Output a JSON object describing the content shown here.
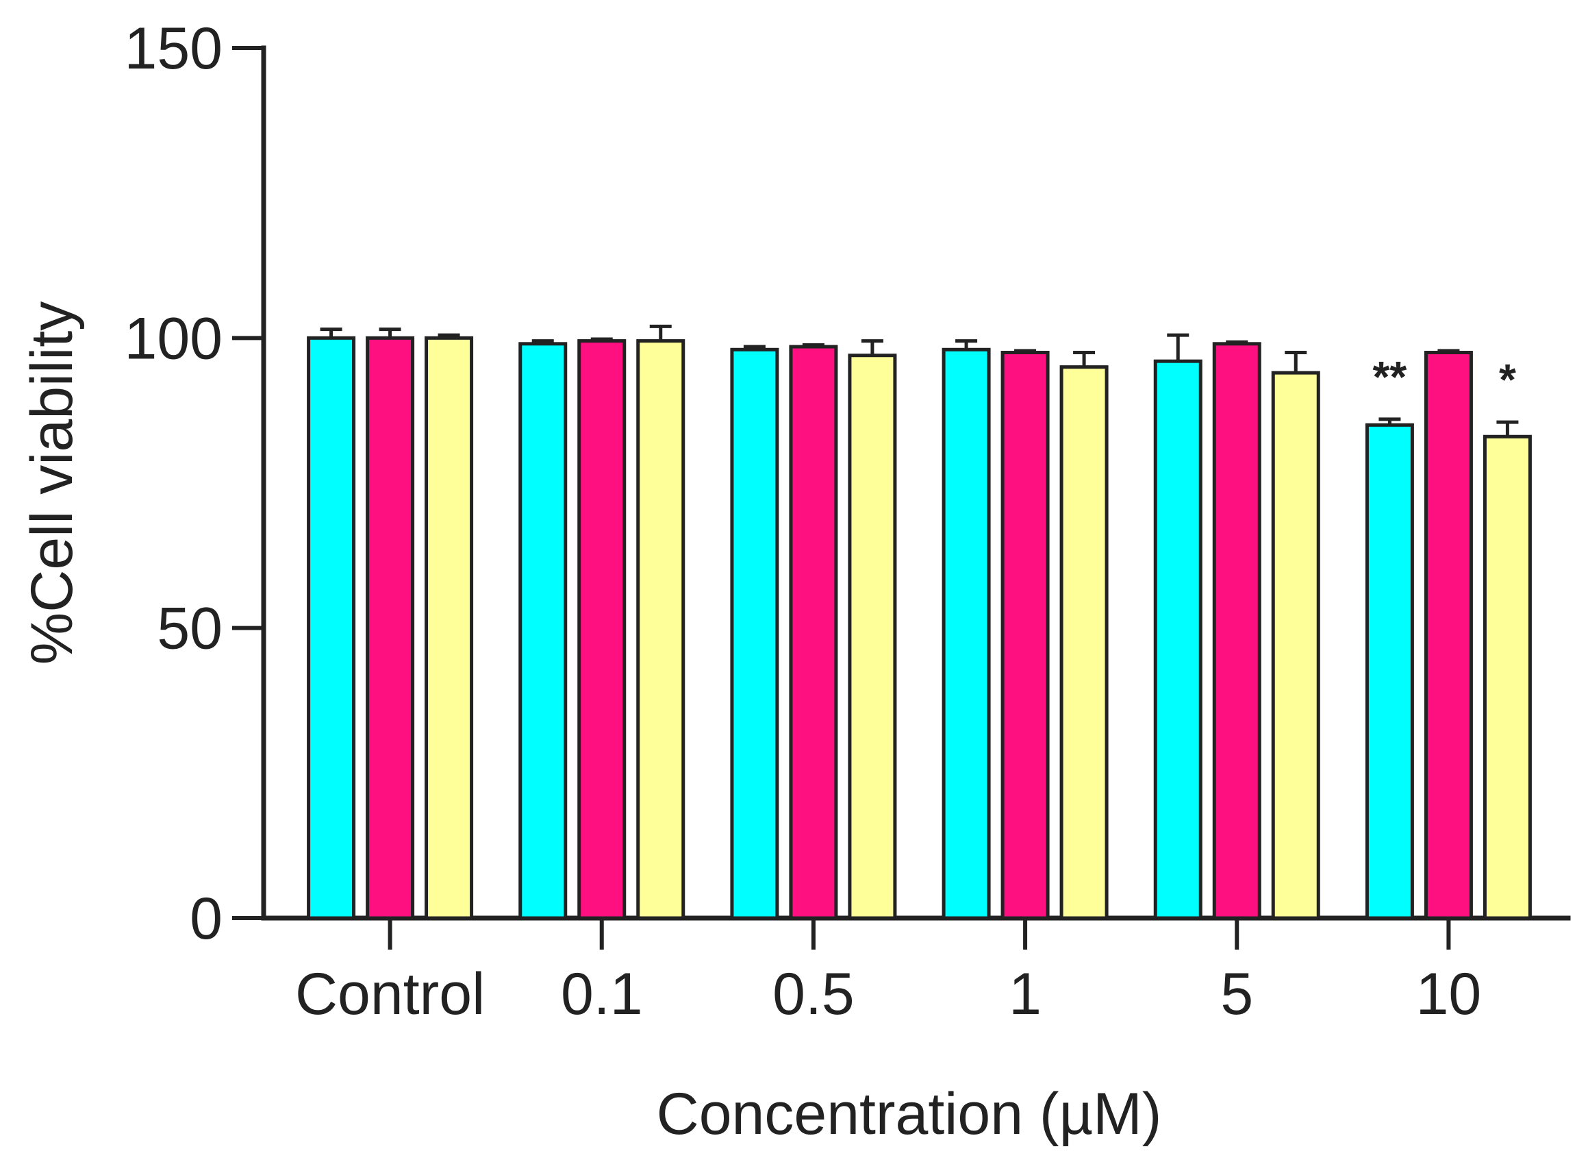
{
  "chart_data": {
    "type": "bar",
    "title": "",
    "xlabel": "Concentration (µM)",
    "ylabel": "%Cell viability",
    "ylim": [
      0,
      150
    ],
    "yticks": [
      0,
      50,
      100,
      150
    ],
    "grid": false,
    "categories": [
      "Control",
      "0.1",
      "0.5",
      "1",
      "5",
      "10"
    ],
    "series": [
      {
        "color": "#00FFFF",
        "values": [
          100,
          99,
          98,
          98,
          96,
          85
        ],
        "errors": [
          1.5,
          0.5,
          0.5,
          1.5,
          4.5,
          1
        ],
        "annotations": [
          "",
          "",
          "",
          "",
          "",
          "**"
        ]
      },
      {
        "color": "#FF1080",
        "values": [
          100,
          99.5,
          98.5,
          97.5,
          99,
          97.5
        ],
        "errors": [
          1.5,
          0.3,
          0.3,
          0.3,
          0.3,
          0.3
        ],
        "annotations": [
          "",
          "",
          "",
          "",
          "",
          ""
        ]
      },
      {
        "color": "#FFFF99",
        "values": [
          100,
          99.5,
          97,
          95,
          94,
          83
        ],
        "errors": [
          0.5,
          2.5,
          2.5,
          2.5,
          3.5,
          2.5
        ],
        "annotations": [
          "",
          "",
          "",
          "",
          "",
          "*"
        ]
      }
    ]
  }
}
